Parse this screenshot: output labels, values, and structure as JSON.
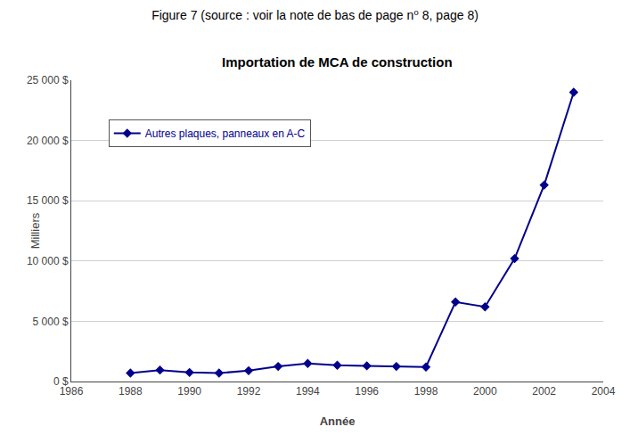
{
  "chart_data": {
    "type": "line",
    "title": "Figure 7 (source : voir la note de bas de page n⁰ 8, page 8)",
    "subtitle": "Importation de MCA de construction",
    "x_label": "Année",
    "y_label": "Milliers",
    "x": [
      1988,
      1989,
      1990,
      1991,
      1992,
      1993,
      1994,
      1995,
      1996,
      1997,
      1998,
      1999,
      2000,
      2001,
      2002,
      2003
    ],
    "series": [
      {
        "name": "Autres plaques, panneaux en A-C",
        "color": "#00008B",
        "marker": "diamond",
        "line_style": "solid",
        "values": [
          700,
          950,
          750,
          700,
          900,
          1250,
          1500,
          1350,
          1300,
          1250,
          1200,
          6600,
          6200,
          10200,
          16300,
          24000
        ]
      }
    ],
    "xlim": [
      1986,
      2004
    ],
    "xticks": [
      1986,
      1988,
      1990,
      1992,
      1994,
      1996,
      1998,
      2000,
      2002,
      2004
    ],
    "ylim": [
      0,
      25000
    ],
    "yticks": [
      {
        "value": 0,
        "label": "0 $"
      },
      {
        "value": 5000,
        "label": "5 000 $"
      },
      {
        "value": 10000,
        "label": "10 000 $"
      },
      {
        "value": 15000,
        "label": "15 000 $"
      },
      {
        "value": 20000,
        "label": "20 000 $"
      },
      {
        "value": 25000,
        "label": "25 000 $"
      }
    ],
    "grid": true,
    "legend": "upper left"
  }
}
